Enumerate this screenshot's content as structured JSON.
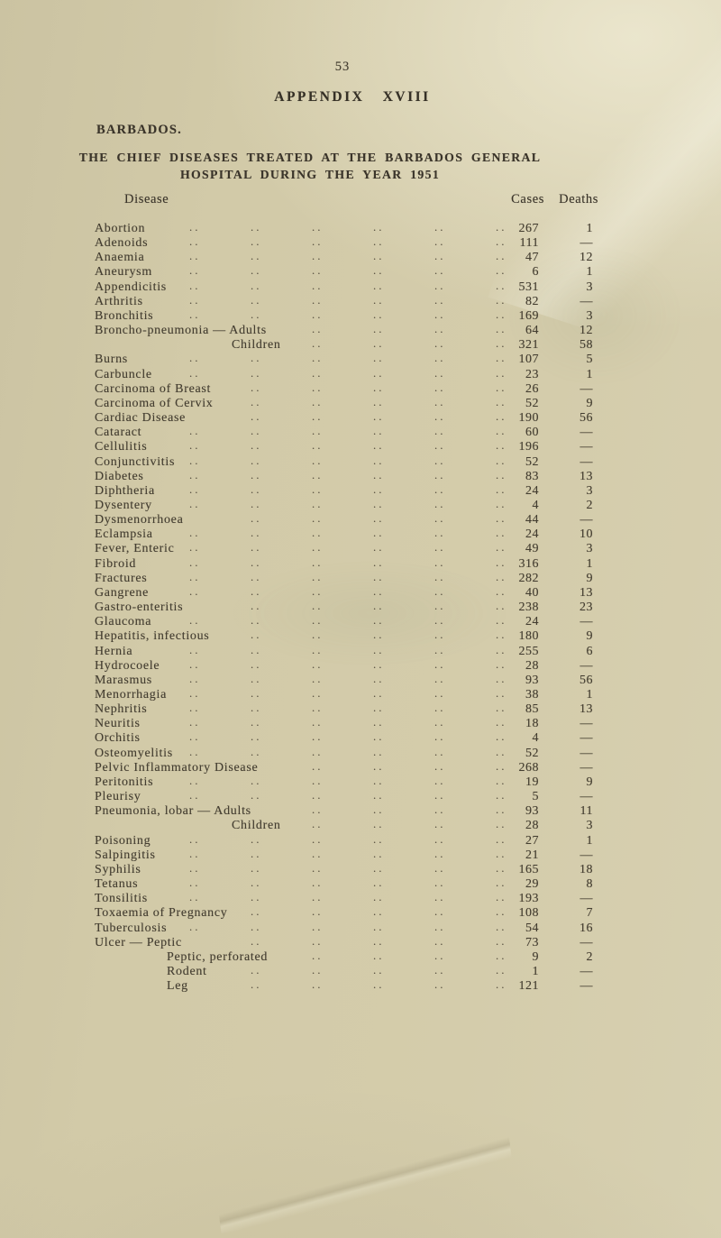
{
  "page": {
    "page_number": "53",
    "appendix_title": "APPENDIX XVIII",
    "country_label": "BARBADOS.",
    "title_line1": "THE CHIEF DISEASES TREATED AT THE BARBADOS GENERAL",
    "title_line2": "HOSPITAL DURING THE YEAR 1951"
  },
  "table": {
    "columns": {
      "disease": "Disease",
      "cases": "Cases",
      "deaths": "Deaths"
    },
    "rows": [
      {
        "disease": "Abortion",
        "cases": "267",
        "deaths": "1",
        "indent": 0
      },
      {
        "disease": "Adenoids",
        "cases": "111",
        "deaths": "—",
        "indent": 0
      },
      {
        "disease": "Anaemia",
        "cases": "47",
        "deaths": "12",
        "indent": 0
      },
      {
        "disease": "Aneurysm",
        "cases": "6",
        "deaths": "1",
        "indent": 0
      },
      {
        "disease": "Appendicitis",
        "cases": "531",
        "deaths": "3",
        "indent": 0
      },
      {
        "disease": "Arthritis",
        "cases": "82",
        "deaths": "—",
        "indent": 0
      },
      {
        "disease": "Bronchitis",
        "cases": "169",
        "deaths": "3",
        "indent": 0
      },
      {
        "disease": "Broncho-pneumonia — Adults",
        "cases": "64",
        "deaths": "12",
        "indent": 0
      },
      {
        "disease": "Children",
        "cases": "321",
        "deaths": "58",
        "indent": 2
      },
      {
        "disease": "Burns",
        "cases": "107",
        "deaths": "5",
        "indent": 0
      },
      {
        "disease": "Carbuncle",
        "cases": "23",
        "deaths": "1",
        "indent": 0
      },
      {
        "disease": "Carcinoma of Breast",
        "cases": "26",
        "deaths": "—",
        "indent": 0
      },
      {
        "disease": "Carcinoma of Cervix",
        "cases": "52",
        "deaths": "9",
        "indent": 0
      },
      {
        "disease": "Cardiac Disease",
        "cases": "190",
        "deaths": "56",
        "indent": 0
      },
      {
        "disease": "Cataract",
        "cases": "60",
        "deaths": "—",
        "indent": 0
      },
      {
        "disease": "Cellulitis",
        "cases": "196",
        "deaths": "—",
        "indent": 0
      },
      {
        "disease": "Conjunctivitis",
        "cases": "52",
        "deaths": "—",
        "indent": 0
      },
      {
        "disease": "Diabetes",
        "cases": "83",
        "deaths": "13",
        "indent": 0
      },
      {
        "disease": "Diphtheria",
        "cases": "24",
        "deaths": "3",
        "indent": 0
      },
      {
        "disease": "Dysentery",
        "cases": "4",
        "deaths": "2",
        "indent": 0
      },
      {
        "disease": "Dysmenorrhoea",
        "cases": "44",
        "deaths": "—",
        "indent": 0
      },
      {
        "disease": "Eclampsia",
        "cases": "24",
        "deaths": "10",
        "indent": 0
      },
      {
        "disease": "Fever, Enteric",
        "cases": "49",
        "deaths": "3",
        "indent": 0
      },
      {
        "disease": "Fibroid",
        "cases": "316",
        "deaths": "1",
        "indent": 0
      },
      {
        "disease": "Fractures",
        "cases": "282",
        "deaths": "9",
        "indent": 0
      },
      {
        "disease": "Gangrene",
        "cases": "40",
        "deaths": "13",
        "indent": 0
      },
      {
        "disease": "Gastro-enteritis",
        "cases": "238",
        "deaths": "23",
        "indent": 0
      },
      {
        "disease": "Glaucoma",
        "cases": "24",
        "deaths": "—",
        "indent": 0
      },
      {
        "disease": "Hepatitis, infectious",
        "cases": "180",
        "deaths": "9",
        "indent": 0
      },
      {
        "disease": "Hernia",
        "cases": "255",
        "deaths": "6",
        "indent": 0
      },
      {
        "disease": "Hydrocoele",
        "cases": "28",
        "deaths": "—",
        "indent": 0
      },
      {
        "disease": "Marasmus",
        "cases": "93",
        "deaths": "56",
        "indent": 0
      },
      {
        "disease": "Menorrhagia",
        "cases": "38",
        "deaths": "1",
        "indent": 0
      },
      {
        "disease": "Nephritis",
        "cases": "85",
        "deaths": "13",
        "indent": 0
      },
      {
        "disease": "Neuritis",
        "cases": "18",
        "deaths": "—",
        "indent": 0
      },
      {
        "disease": "Orchitis",
        "cases": "4",
        "deaths": "—",
        "indent": 0
      },
      {
        "disease": "Osteomyelitis",
        "cases": "52",
        "deaths": "—",
        "indent": 0
      },
      {
        "disease": "Pelvic Inflammatory Disease",
        "cases": "268",
        "deaths": "—",
        "indent": 0
      },
      {
        "disease": "Peritonitis",
        "cases": "19",
        "deaths": "9",
        "indent": 0
      },
      {
        "disease": "Pleurisy",
        "cases": "5",
        "deaths": "—",
        "indent": 0
      },
      {
        "disease": "Pneumonia, lobar — Adults",
        "cases": "93",
        "deaths": "11",
        "indent": 0
      },
      {
        "disease": "Children",
        "cases": "28",
        "deaths": "3",
        "indent": 2
      },
      {
        "disease": "Poisoning",
        "cases": "27",
        "deaths": "1",
        "indent": 0
      },
      {
        "disease": "Salpingitis",
        "cases": "21",
        "deaths": "—",
        "indent": 0
      },
      {
        "disease": "Syphilis",
        "cases": "165",
        "deaths": "18",
        "indent": 0
      },
      {
        "disease": "Tetanus",
        "cases": "29",
        "deaths": "8",
        "indent": 0
      },
      {
        "disease": "Tonsilitis",
        "cases": "193",
        "deaths": "—",
        "indent": 0
      },
      {
        "disease": "Toxaemia of Pregnancy",
        "cases": "108",
        "deaths": "7",
        "indent": 0
      },
      {
        "disease": "Tuberculosis",
        "cases": "54",
        "deaths": "16",
        "indent": 0
      },
      {
        "disease": "Ulcer — Peptic",
        "cases": "73",
        "deaths": "—",
        "indent": 0
      },
      {
        "disease": "Peptic, perforated",
        "cases": "9",
        "deaths": "2",
        "indent": 1
      },
      {
        "disease": "Rodent",
        "cases": "1",
        "deaths": "—",
        "indent": 1
      },
      {
        "disease": "Leg",
        "cases": "121",
        "deaths": "—",
        "indent": 1
      }
    ]
  }
}
